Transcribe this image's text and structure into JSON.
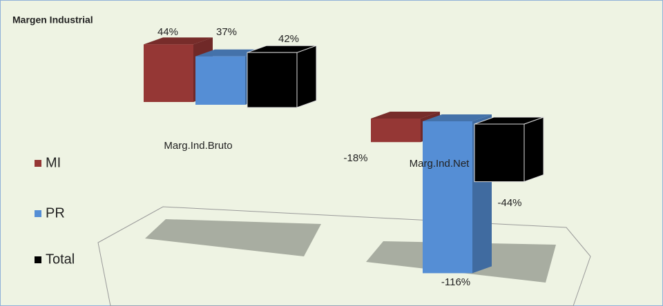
{
  "chart_data": {
    "type": "bar3d",
    "title": "Margen Industrial",
    "categories": [
      "Marg.Ind.Bruto",
      "Marg.Ind.Net"
    ],
    "series": [
      {
        "name": "MI",
        "color": "#953735",
        "values": [
          44,
          -18
        ],
        "value_labels": [
          "44%",
          "-18%"
        ]
      },
      {
        "name": "PR",
        "color": "#558ed5",
        "values": [
          37,
          -116
        ],
        "value_labels": [
          "37%",
          "-116%"
        ]
      },
      {
        "name": "Total",
        "color": "#000000",
        "values": [
          42,
          -44
        ],
        "value_labels": [
          "42%",
          "-44%"
        ]
      }
    ],
    "legend": "left"
  }
}
